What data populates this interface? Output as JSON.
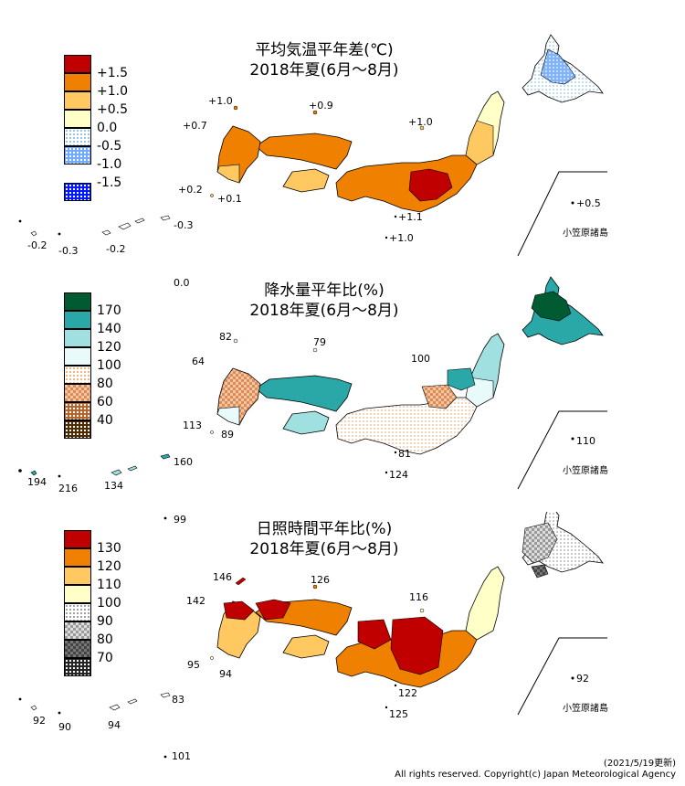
{
  "panels": [
    {
      "id": "temperature",
      "title_line1": "平均気温平年差(℃)",
      "title_line2": "2018年夏(6月～8月)",
      "legend": [
        {
          "label": "+1.5",
          "fill": "#c00000",
          "pattern": "solid"
        },
        {
          "label": "+1.0",
          "fill": "#f08000",
          "pattern": "solid"
        },
        {
          "label": "+0.5",
          "fill": "#ffc860",
          "pattern": "solid"
        },
        {
          "label": "0.0",
          "fill": "#ffffc8",
          "pattern": "solid"
        },
        {
          "label": "-0.5",
          "fill": "#ffffff",
          "pattern": "dots-light"
        },
        {
          "label": "-1.0",
          "fill": "#6fa8ff",
          "pattern": "dots-mid"
        },
        {
          "label": "-1.5",
          "fill": "#0015ff",
          "pattern": "dots-dark"
        }
      ],
      "station_values": [
        "+1.0",
        "+0.9",
        "+0.7",
        "+1.0",
        "+0.2",
        "+0.1",
        "+1.1",
        "+1.0",
        "+0.5",
        "-0.3",
        "-0.2",
        "-0.3",
        "-0.2",
        "0.0"
      ],
      "bonin_label": "小笠原諸島"
    },
    {
      "id": "precipitation",
      "title_line1": "降水量平年比(%)",
      "title_line2": "2018年夏(6月～8月)",
      "legend": [
        {
          "label": "170",
          "fill": "#005a32",
          "pattern": "solid"
        },
        {
          "label": "140",
          "fill": "#2aa8a8",
          "pattern": "solid"
        },
        {
          "label": "120",
          "fill": "#a0e0e0",
          "pattern": "solid"
        },
        {
          "label": "100",
          "fill": "#e8fafa",
          "pattern": "solid"
        },
        {
          "label": "80",
          "fill": "#ffffff",
          "pattern": "dots-orange"
        },
        {
          "label": "60",
          "fill": "#f5c6a0",
          "pattern": "check-brown"
        },
        {
          "label": "40",
          "fill": "#b0642c",
          "pattern": "dots-brown"
        }
      ],
      "legend_extra_swatch": {
        "fill": "#4a2a00",
        "pattern": "dots-darkbrown"
      },
      "station_values": [
        "82",
        "79",
        "64",
        "100",
        "113",
        "89",
        "81",
        "124",
        "110",
        "194",
        "216",
        "134",
        "160",
        "99"
      ],
      "bonin_label": "小笠原諸島"
    },
    {
      "id": "sunshine",
      "title_line1": "日照時間平年比(%)",
      "title_line2": "2018年夏(6月～8月)",
      "legend": [
        {
          "label": "130",
          "fill": "#c00000",
          "pattern": "solid"
        },
        {
          "label": "120",
          "fill": "#f08000",
          "pattern": "solid"
        },
        {
          "label": "110",
          "fill": "#ffc860",
          "pattern": "solid"
        },
        {
          "label": "100",
          "fill": "#ffffc8",
          "pattern": "solid"
        },
        {
          "label": "90",
          "fill": "#ffffff",
          "pattern": "dots-gray"
        },
        {
          "label": "80",
          "fill": "#dddddd",
          "pattern": "check-gray"
        },
        {
          "label": "70",
          "fill": "#777777",
          "pattern": "check-darkgray"
        }
      ],
      "legend_extra_swatch": {
        "fill": "#222222",
        "pattern": "dots-black"
      },
      "station_values": [
        "146",
        "126",
        "142",
        "116",
        "95",
        "94",
        "122",
        "125",
        "92",
        "92",
        "90",
        "94",
        "83",
        "101"
      ],
      "bonin_label": "小笠原諸島"
    }
  ],
  "footer": {
    "updated": "(2021/5/19更新)",
    "copyright": "All rights reserved. Copyright(c) Japan Meteorological Agency"
  }
}
